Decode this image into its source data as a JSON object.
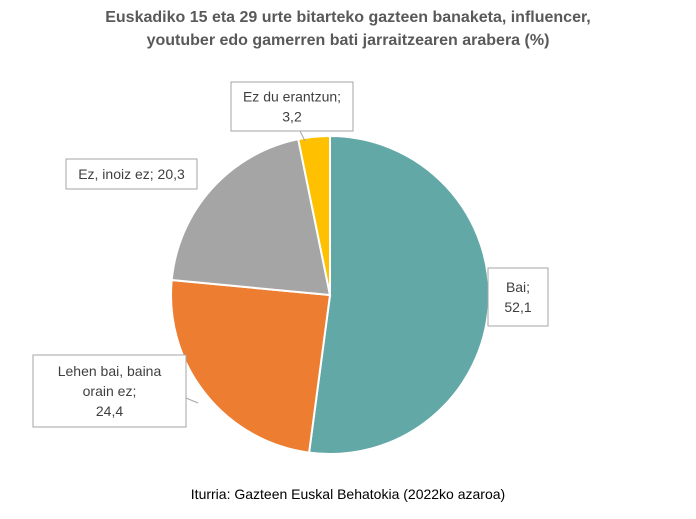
{
  "chart_data": {
    "type": "pie",
    "title_lines": [
      "Euskadiko 15 eta 29 urte bitarteko gazteen banaketa, influencer,",
      "youtuber edo gamerren bati jarraitzearen arabera (%)"
    ],
    "slices": [
      {
        "label_lines": [
          "Bai;",
          "52,1"
        ],
        "value": 52.1,
        "color": "#62A8A6"
      },
      {
        "label_lines": [
          "Lehen bai, baina",
          "orain ez;",
          "24,4"
        ],
        "value": 24.4,
        "color": "#ED7D31"
      },
      {
        "label_lines": [
          "Ez, inoiz ez; 20,3"
        ],
        "value": 20.3,
        "color": "#A5A5A5"
      },
      {
        "label_lines": [
          "Ez du erantzun;",
          "3,2"
        ],
        "value": 3.2,
        "color": "#FFC000"
      }
    ],
    "source": "Iturria: Gazteen Euskal Behatokia (2022ko azaroa)"
  }
}
